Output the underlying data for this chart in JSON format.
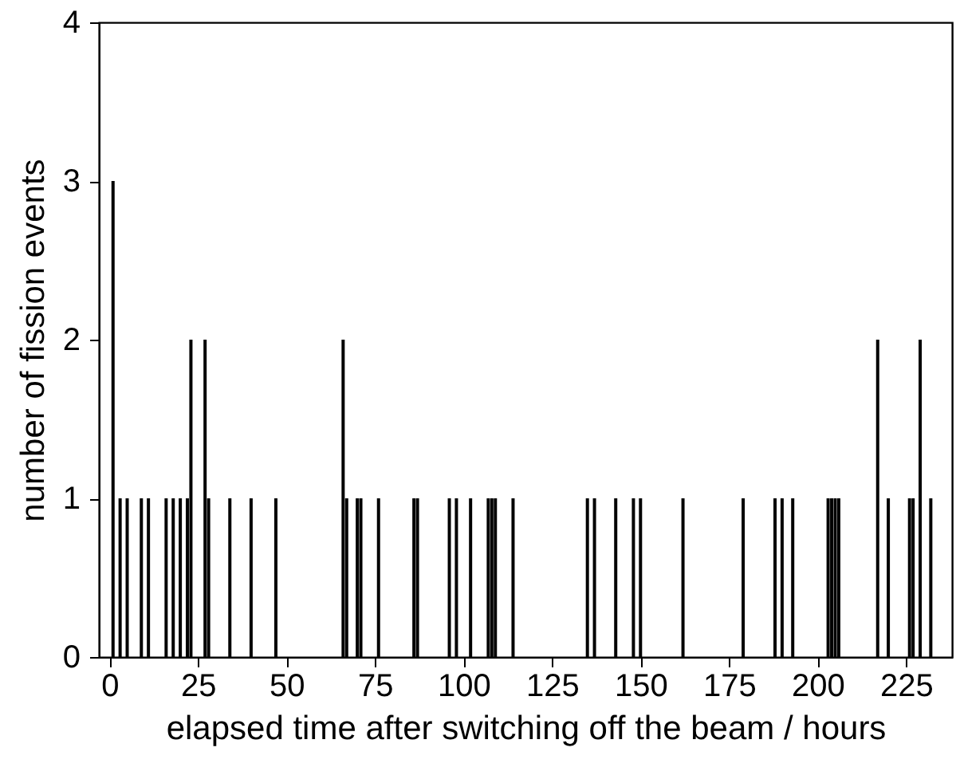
{
  "chart_data": {
    "type": "bar",
    "xlabel": "elapsed time after switching off the beam / hours",
    "ylabel": "number of fission events",
    "x": [
      1,
      3,
      5,
      9,
      11,
      16,
      18,
      20,
      22,
      23,
      27,
      28,
      34,
      40,
      47,
      66,
      67,
      70,
      71,
      76,
      86,
      87,
      96,
      98,
      102,
      107,
      108,
      109,
      114,
      135,
      137,
      143,
      148,
      150,
      162,
      179,
      188,
      190,
      193,
      203,
      204,
      205,
      206,
      217,
      220,
      226,
      227,
      229,
      232
    ],
    "values": [
      3,
      1,
      1,
      1,
      1,
      1,
      1,
      1,
      1,
      2,
      2,
      1,
      1,
      1,
      1,
      2,
      1,
      1,
      1,
      1,
      1,
      1,
      1,
      1,
      1,
      1,
      1,
      1,
      1,
      1,
      1,
      1,
      1,
      1,
      1,
      1,
      1,
      1,
      1,
      1,
      1,
      1,
      1,
      2,
      1,
      1,
      1,
      2,
      1
    ],
    "color": "#000000",
    "xlim": [
      -3,
      238
    ],
    "xticks": [
      0,
      25,
      50,
      75,
      100,
      125,
      150,
      175,
      200,
      225
    ],
    "ylim": [
      0,
      4
    ],
    "yticks": [
      0,
      1,
      2,
      3,
      4
    ],
    "grid": false
  }
}
